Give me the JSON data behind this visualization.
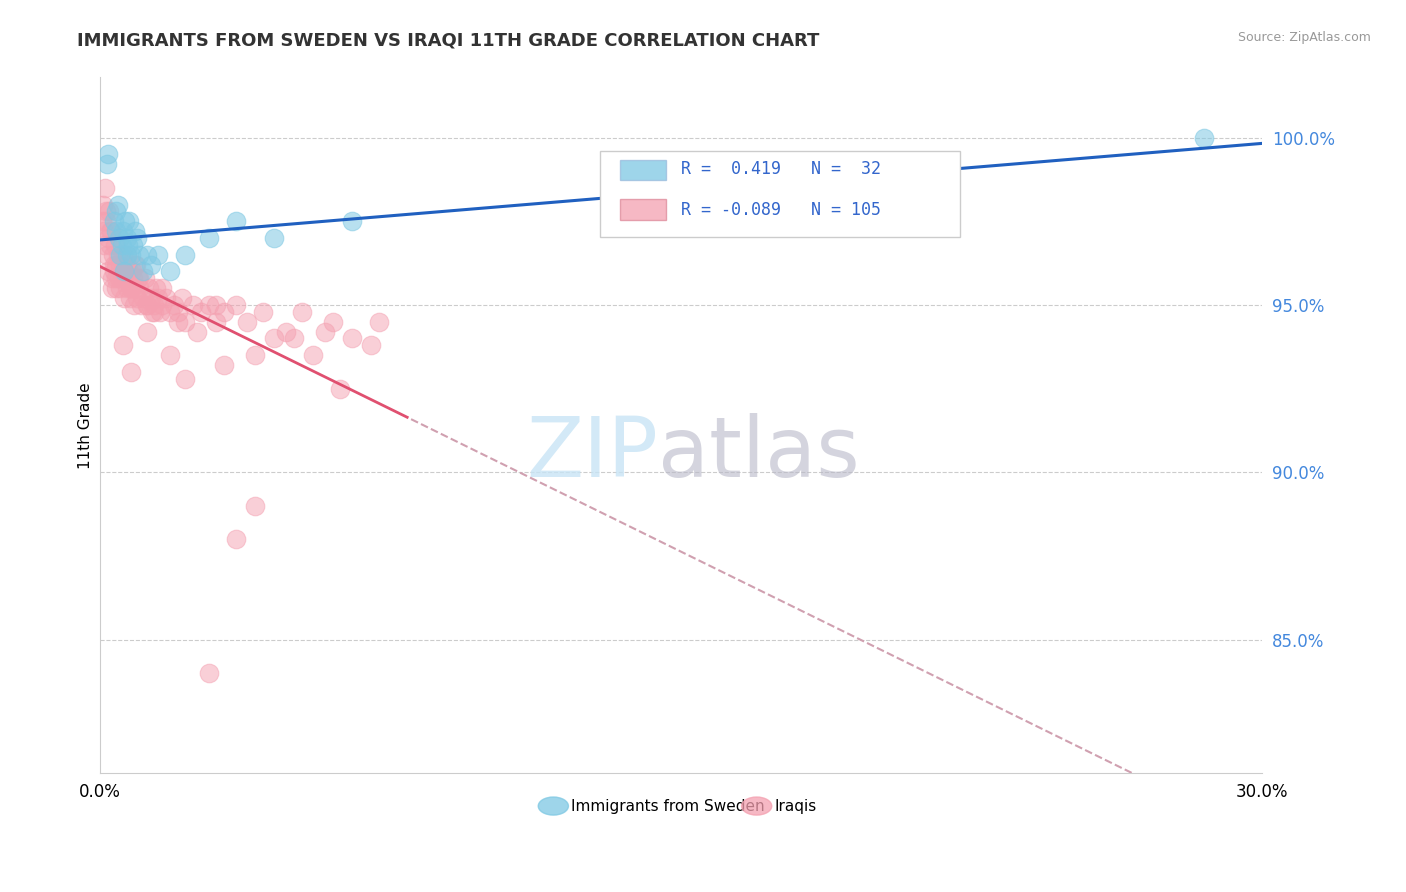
{
  "title": "IMMIGRANTS FROM SWEDEN VS IRAQI 11TH GRADE CORRELATION CHART",
  "source": "Source: ZipAtlas.com",
  "ylabel": "11th Grade",
  "xmin": 0.0,
  "xmax": 30.0,
  "ymin": 81.0,
  "ymax": 101.8,
  "sweden_R": 0.419,
  "sweden_N": 32,
  "iraq_R": -0.089,
  "iraq_N": 105,
  "sweden_color": "#7ec8e3",
  "iraq_color": "#f4a0b0",
  "sweden_line_color": "#2060c0",
  "iraq_line_color": "#e05070",
  "iraq_dash_color": "#d0a0b0",
  "legend_sweden": "Immigrants from Sweden",
  "legend_iraq": "Iraqis",
  "yticks": [
    85.0,
    90.0,
    95.0,
    100.0
  ],
  "ytick_labels": [
    "85.0%",
    "90.0%",
    "95.0%",
    "100.0%"
  ],
  "sweden_x": [
    0.18,
    0.2,
    0.35,
    0.4,
    0.42,
    0.45,
    0.48,
    0.5,
    0.55,
    0.6,
    0.62,
    0.65,
    0.68,
    0.7,
    0.72,
    0.75,
    0.8,
    0.85,
    0.9,
    0.95,
    1.0,
    1.1,
    1.2,
    1.3,
    1.5,
    1.8,
    2.2,
    2.8,
    3.5,
    4.5,
    6.5,
    28.5
  ],
  "sweden_y": [
    99.2,
    99.5,
    97.5,
    97.8,
    97.2,
    98.0,
    97.0,
    96.5,
    96.8,
    97.2,
    96.0,
    97.5,
    96.5,
    97.0,
    96.8,
    97.5,
    96.5,
    96.8,
    97.2,
    97.0,
    96.5,
    96.0,
    96.5,
    96.2,
    96.5,
    96.0,
    96.5,
    97.0,
    97.5,
    97.0,
    97.5,
    100.0
  ],
  "iraq_x": [
    0.05,
    0.08,
    0.1,
    0.12,
    0.15,
    0.18,
    0.2,
    0.22,
    0.25,
    0.28,
    0.3,
    0.32,
    0.35,
    0.38,
    0.4,
    0.42,
    0.45,
    0.48,
    0.5,
    0.52,
    0.55,
    0.58,
    0.6,
    0.62,
    0.65,
    0.68,
    0.7,
    0.72,
    0.75,
    0.78,
    0.8,
    0.82,
    0.85,
    0.88,
    0.9,
    0.92,
    0.95,
    0.98,
    1.0,
    1.05,
    1.1,
    1.15,
    1.2,
    1.25,
    1.3,
    1.35,
    1.4,
    1.45,
    1.5,
    1.55,
    1.6,
    1.7,
    1.8,
    1.9,
    2.0,
    2.1,
    2.2,
    2.4,
    2.6,
    2.8,
    3.0,
    3.2,
    3.5,
    3.8,
    4.2,
    4.8,
    5.2,
    5.8,
    6.5,
    7.2,
    0.1,
    0.15,
    0.2,
    0.25,
    0.3,
    0.35,
    0.4,
    0.5,
    0.6,
    0.7,
    0.8,
    0.9,
    1.0,
    1.2,
    1.4,
    1.6,
    2.0,
    2.5,
    3.0,
    4.0,
    5.0,
    6.0,
    7.0,
    3.2,
    4.5,
    5.5,
    0.6,
    0.8,
    1.2,
    1.8,
    2.2,
    3.5,
    4.0,
    2.8,
    6.2
  ],
  "iraq_y": [
    97.5,
    98.0,
    97.2,
    98.5,
    97.8,
    96.5,
    97.0,
    97.8,
    96.8,
    97.2,
    95.8,
    96.5,
    96.2,
    96.8,
    95.5,
    96.2,
    96.5,
    95.8,
    96.2,
    95.5,
    95.8,
    96.0,
    96.5,
    95.2,
    95.8,
    96.2,
    95.5,
    95.8,
    96.0,
    95.2,
    95.5,
    96.0,
    95.8,
    95.0,
    95.5,
    96.2,
    95.2,
    95.8,
    95.5,
    95.0,
    95.2,
    95.8,
    95.0,
    95.5,
    95.2,
    94.8,
    95.0,
    95.5,
    95.2,
    94.8,
    95.0,
    95.2,
    94.8,
    95.0,
    94.8,
    95.2,
    94.5,
    95.0,
    94.8,
    95.0,
    94.5,
    94.8,
    95.0,
    94.5,
    94.8,
    94.2,
    94.8,
    94.2,
    94.0,
    94.5,
    96.8,
    97.5,
    96.0,
    97.2,
    95.5,
    96.0,
    95.8,
    97.0,
    96.0,
    96.5,
    95.5,
    96.2,
    95.8,
    95.0,
    94.8,
    95.5,
    94.5,
    94.2,
    95.0,
    93.5,
    94.0,
    94.5,
    93.8,
    93.2,
    94.0,
    93.5,
    93.8,
    93.0,
    94.2,
    93.5,
    92.8,
    88.0,
    89.0,
    84.0,
    92.5
  ]
}
